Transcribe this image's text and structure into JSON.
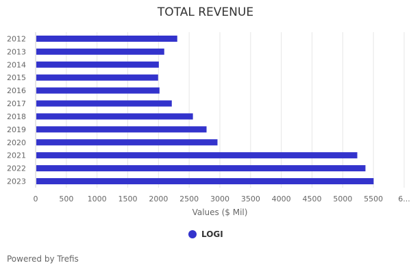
{
  "chart_data": {
    "type": "bar",
    "orientation": "horizontal",
    "title": "TOTAL REVENUE",
    "xlabel": "Values ($ Mil)",
    "ylabel": "",
    "categories": [
      "2012",
      "2013",
      "2014",
      "2015",
      "2016",
      "2017",
      "2018",
      "2019",
      "2020",
      "2021",
      "2022",
      "2023"
    ],
    "series": [
      {
        "name": "LOGI",
        "values": [
          2306,
          2094,
          2006,
          1994,
          2017,
          2217,
          2561,
          2783,
          2961,
          5237,
          5370,
          5503
        ],
        "color": "#3333cc"
      }
    ],
    "xlim": [
      0,
      6000
    ],
    "x_ticks": [
      "0",
      "500",
      "1000",
      "1500",
      "2000",
      "2500",
      "3000",
      "3500",
      "4000",
      "4500",
      "5000",
      "5500",
      "6..."
    ],
    "grid": true,
    "legend_position": "bottom"
  },
  "footer": {
    "credit": "Powered by Trefis"
  }
}
